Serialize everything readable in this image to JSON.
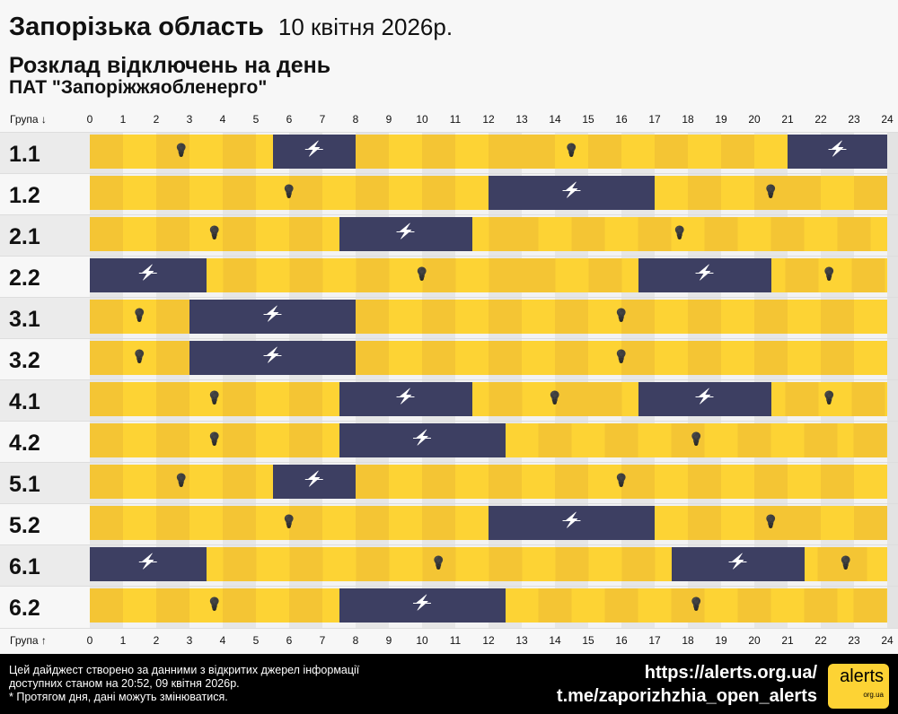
{
  "header": {
    "region": "Запорізька область",
    "date": "10 квітня 2026р.",
    "subtitle": "Розклад відключень на день",
    "company": "ПАТ \"Запоріжжяобленерго\""
  },
  "axis": {
    "top_label": "Група ↓",
    "bottom_label": "Група ↑",
    "hours": [
      "0",
      "1",
      "2",
      "3",
      "4",
      "5",
      "6",
      "7",
      "8",
      "9",
      "10",
      "11",
      "12",
      "13",
      "14",
      "15",
      "16",
      "17",
      "18",
      "19",
      "20",
      "21",
      "22",
      "23",
      "24"
    ]
  },
  "colors": {
    "power_on": "#fdd334",
    "power_off": "#3d3f62"
  },
  "groups": [
    {
      "name": "1.1",
      "outages": [
        [
          5.5,
          8
        ],
        [
          21,
          24
        ]
      ]
    },
    {
      "name": "1.2",
      "outages": [
        [
          12,
          17
        ]
      ]
    },
    {
      "name": "2.1",
      "outages": [
        [
          7.5,
          11.5
        ]
      ]
    },
    {
      "name": "2.2",
      "outages": [
        [
          0,
          3.5
        ],
        [
          16.5,
          20.5
        ]
      ]
    },
    {
      "name": "3.1",
      "outages": [
        [
          3,
          8
        ]
      ]
    },
    {
      "name": "3.2",
      "outages": [
        [
          3,
          8
        ]
      ]
    },
    {
      "name": "4.1",
      "outages": [
        [
          7.5,
          11.5
        ],
        [
          16.5,
          20.5
        ]
      ]
    },
    {
      "name": "4.2",
      "outages": [
        [
          7.5,
          12.5
        ]
      ]
    },
    {
      "name": "5.1",
      "outages": [
        [
          5.5,
          8
        ]
      ]
    },
    {
      "name": "5.2",
      "outages": [
        [
          12,
          17
        ]
      ]
    },
    {
      "name": "6.1",
      "outages": [
        [
          0,
          3.5
        ],
        [
          17.5,
          21.5
        ]
      ]
    },
    {
      "name": "6.2",
      "outages": [
        [
          7.5,
          12.5
        ]
      ]
    }
  ],
  "footer": {
    "line1": "Цей дайджест створено за данними з відкритих джерел інформації",
    "line2": "доступних станом на 20:52, 09 квітня 2026р.",
    "line3": "* Протягом дня, дані можуть змінюватися.",
    "url": "https://alerts.org.ua/",
    "telegram": "t.me/zaporizhzhia_open_alerts",
    "logo_text": "alerts",
    "logo_sub": "org.ua"
  }
}
